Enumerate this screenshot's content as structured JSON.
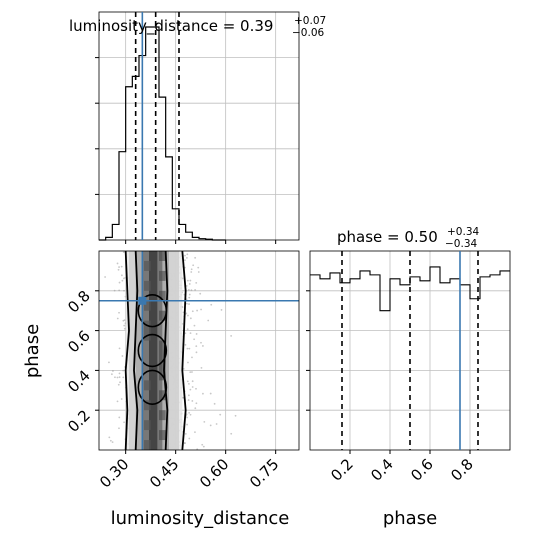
{
  "colors": {
    "truth": "#3a78b0",
    "hist": "#000000",
    "grid": "#bfbfbf",
    "scatter": "#9a9a9a"
  },
  "chart_data": [
    {
      "panel": "luminosity_distance-1d",
      "type": "histogram",
      "title": {
        "main": "luminosity_distance = 0.39",
        "plus": "+0.07",
        "minus": "−0.06"
      },
      "xlim": [
        0.22,
        0.82
      ],
      "bins": [
        0.22,
        0.24,
        0.26,
        0.28,
        0.3,
        0.32,
        0.34,
        0.36,
        0.38,
        0.4,
        0.42,
        0.44,
        0.46,
        0.48,
        0.5,
        0.52,
        0.54,
        0.56,
        0.58,
        0.6
      ],
      "counts": [
        0,
        1,
        6,
        34,
        59,
        63,
        71,
        82,
        82,
        55,
        32,
        12,
        6,
        3,
        1,
        0.5,
        0.3,
        0,
        0
      ],
      "quantiles": [
        0.33,
        0.39,
        0.46
      ],
      "truth": 0.35
    },
    {
      "panel": "phase-vs-luminosity_distance-2d",
      "type": "scatter-density",
      "xlabel": "luminosity_distance",
      "ylabel": "phase",
      "xlim": [
        0.22,
        0.82
      ],
      "ylim": [
        0.0,
        1.0
      ],
      "xticks": [
        "0.30",
        "0.45",
        "0.60",
        "0.75"
      ],
      "xtick_values": [
        0.3,
        0.45,
        0.6,
        0.75
      ],
      "yticks": [
        "0.2",
        "0.4",
        "0.6",
        "0.8"
      ],
      "ytick_values": [
        0.2,
        0.4,
        0.6,
        0.8
      ],
      "truth": {
        "x": 0.35,
        "y": 0.75
      },
      "contours": [
        {
          "level": "outer",
          "x_left": [
            0.3,
            0.305,
            0.3,
            0.31,
            0.305,
            0.3
          ],
          "x_right": [
            0.47,
            0.48,
            0.47,
            0.475,
            0.48,
            0.47
          ]
        },
        {
          "level": "inner",
          "x_left": [
            0.33,
            0.335,
            0.325,
            0.33,
            0.335,
            0.33
          ],
          "x_right": [
            0.42,
            0.425,
            0.415,
            0.42,
            0.425,
            0.42
          ]
        }
      ]
    },
    {
      "panel": "phase-1d",
      "type": "histogram",
      "title": {
        "main": "phase = 0.50",
        "plus": "+0.34",
        "minus": "−0.34"
      },
      "xlabel": "phase",
      "xlim": [
        0.0,
        1.0
      ],
      "xticks": [
        "0.2",
        "0.4",
        "0.6",
        "0.8"
      ],
      "xtick_values": [
        0.2,
        0.4,
        0.6,
        0.8
      ],
      "bins": [
        0.0,
        0.05,
        0.1,
        0.15,
        0.2,
        0.25,
        0.3,
        0.35,
        0.4,
        0.45,
        0.5,
        0.55,
        0.6,
        0.65,
        0.7,
        0.75,
        0.8,
        0.85,
        0.9,
        0.95,
        1.0
      ],
      "counts": [
        88,
        86,
        89,
        84,
        86,
        90,
        88,
        70,
        86,
        83,
        87,
        85,
        92,
        84,
        86,
        83,
        76,
        87,
        88,
        90
      ],
      "quantiles": [
        0.16,
        0.5,
        0.84
      ],
      "truth": 0.75
    }
  ]
}
